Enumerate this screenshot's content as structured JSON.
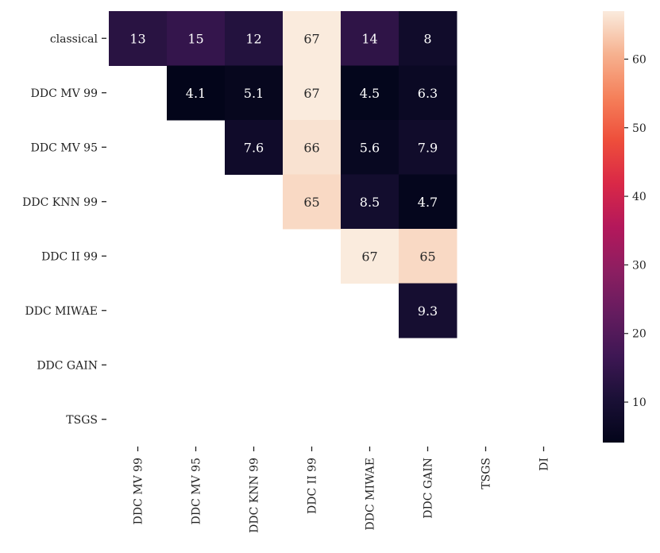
{
  "chart_data": {
    "type": "heatmap",
    "title": "",
    "xlabel": "",
    "ylabel": "",
    "row_labels": [
      "classical",
      "DDC MV 99",
      "DDC MV 95",
      "DDC KNN 99",
      "DDC II 99",
      "DDC MIWAE",
      "DDC GAIN",
      "TSGS"
    ],
    "col_labels": [
      "DDC MV 99",
      "DDC MV 95",
      "DDC KNN 99",
      "DDC II 99",
      "DDC MIWAE",
      "DDC GAIN",
      "TSGS",
      "DI"
    ],
    "values": [
      [
        13,
        15,
        12,
        67,
        14,
        8,
        null,
        null
      ],
      [
        null,
        4.1,
        5.1,
        67,
        4.5,
        6.3,
        null,
        null
      ],
      [
        null,
        null,
        7.6,
        66,
        5.6,
        7.9,
        null,
        null
      ],
      [
        null,
        null,
        null,
        65,
        8.5,
        4.7,
        null,
        null
      ],
      [
        null,
        null,
        null,
        null,
        67,
        65,
        null,
        null
      ],
      [
        null,
        null,
        null,
        null,
        null,
        9.3,
        null,
        null
      ],
      [
        null,
        null,
        null,
        null,
        null,
        null,
        null,
        null
      ],
      [
        null,
        null,
        null,
        null,
        null,
        null,
        null,
        null
      ]
    ],
    "colormap": "rocket",
    "colorbar": {
      "range": [
        4.1,
        67
      ],
      "ticks": [
        10,
        20,
        30,
        40,
        50,
        60
      ]
    }
  }
}
